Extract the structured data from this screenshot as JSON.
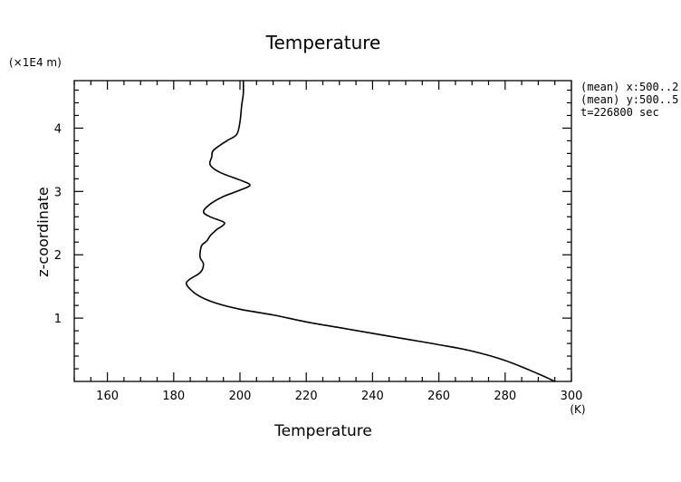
{
  "chart_data": {
    "type": "line",
    "title": "Temperature",
    "xlabel": "Temperature",
    "ylabel": "z-coordinate",
    "x_unit": "(K)",
    "y_unit": "(×1E4 m)",
    "xlim": [
      150,
      300
    ],
    "ylim": [
      0,
      4.75
    ],
    "xticks": [
      160,
      180,
      200,
      220,
      240,
      260,
      280,
      300
    ],
    "yticks": [
      1,
      2,
      3,
      4
    ],
    "annotations": [
      "(mean) x:500..2",
      "(mean) y:500..5",
      "t=226800 sec"
    ],
    "grid": false,
    "series": [
      {
        "x": [
          295,
          290,
          280,
          270,
          260,
          250,
          240,
          230,
          220,
          210,
          200,
          192,
          187,
          184,
          184.5,
          188,
          189,
          188,
          188,
          188.5,
          190,
          191,
          192,
          193,
          195,
          195,
          191,
          189,
          191,
          195,
          200,
          203,
          200,
          194,
          191,
          191.5,
          192,
          196,
          199,
          200,
          200.5,
          201,
          201
        ],
        "y": [
          0.0,
          0.12,
          0.33,
          0.48,
          0.58,
          0.67,
          0.76,
          0.85,
          0.94,
          1.05,
          1.14,
          1.25,
          1.37,
          1.52,
          1.6,
          1.72,
          1.85,
          1.95,
          2.05,
          2.15,
          2.22,
          2.3,
          2.35,
          2.4,
          2.47,
          2.52,
          2.6,
          2.68,
          2.8,
          2.92,
          3.02,
          3.1,
          3.18,
          3.3,
          3.42,
          3.55,
          3.65,
          3.8,
          3.9,
          4.1,
          4.35,
          4.55,
          4.75
        ]
      }
    ]
  }
}
